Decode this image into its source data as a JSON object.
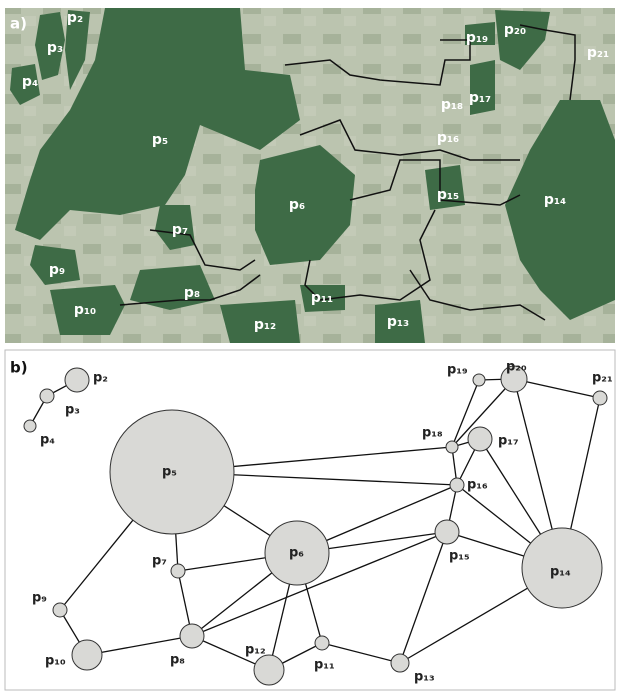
{
  "panel_a": {
    "label": "a)",
    "patches": [
      "p₂",
      "p₃",
      "p₄",
      "p₅",
      "p₆",
      "p₇",
      "p₈",
      "p₉",
      "p₁₀",
      "p₁₁",
      "p₁₂",
      "p₁₃",
      "p₁₄",
      "p₁₅",
      "p₁₆",
      "p₁₇",
      "p₁₈",
      "p₁₉",
      "p₂₀",
      "p₂₁"
    ]
  },
  "panel_b": {
    "label": "b)",
    "nodes": [
      "p₂",
      "p₃",
      "p₄",
      "p₅",
      "p₆",
      "p₇",
      "p₈",
      "p₉",
      "p₁₀",
      "p₁₁",
      "p₁₂",
      "p₁₃",
      "p₁₄",
      "p₁₅",
      "p₁₆",
      "p₁₇",
      "p₁₈",
      "p₁₉",
      "p₂₀",
      "p₂₁"
    ]
  }
}
